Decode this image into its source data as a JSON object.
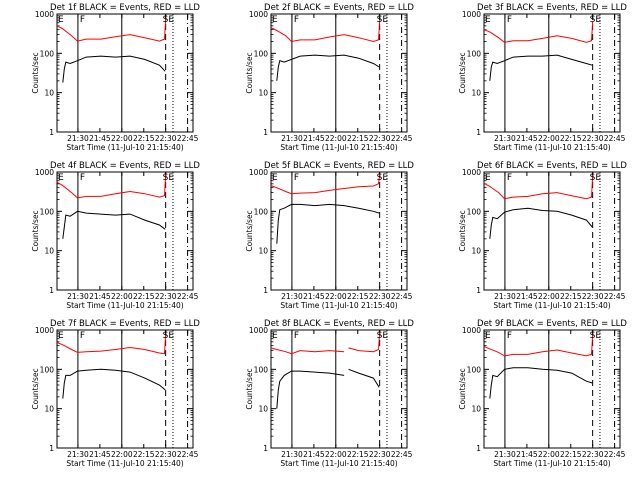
{
  "window": {
    "background": "#ffffff"
  },
  "chart_data": [
    {
      "type": "line",
      "title": "Det 1f BLACK = Events, RED = LLD",
      "xlabel": "Start Time (11-Jul-10 21:15:40)",
      "ylabel": "Counts/sec",
      "x_ticks": [
        "21:30",
        "21:45",
        "22:00",
        "22:15",
        "22:30",
        "22:45"
      ],
      "y_ticks": [
        "1",
        "10",
        "100",
        "1000"
      ],
      "y_scale": "log",
      "ylim": [
        1,
        1000
      ],
      "xlim_min": [
        0,
        93
      ],
      "markers": [
        "E",
        "F",
        "SE"
      ],
      "event_lines_min": {
        "solid": [
          14.3,
          44.3
        ],
        "dashed": 74.3,
        "dotted": 79.3,
        "dashdot": 89.3
      },
      "series": [
        {
          "color": "#ff0000",
          "x": [
            0,
            4,
            10,
            14,
            20,
            30,
            40,
            50,
            60,
            70,
            73.5,
            74.3
          ],
          "y": [
            500,
            420,
            280,
            205,
            230,
            230,
            265,
            300,
            250,
            205,
            230,
            800
          ]
        },
        {
          "color": "#000000",
          "x": [
            4,
            5,
            6,
            9,
            14,
            20,
            30,
            40,
            50,
            60,
            70,
            74
          ],
          "y": [
            18,
            40,
            60,
            55,
            65,
            80,
            85,
            80,
            85,
            70,
            50,
            35
          ]
        }
      ]
    },
    {
      "type": "line",
      "title": "Det 2f BLACK = Events, RED = LLD",
      "xlabel": "Start Time (11-Jul-10 21:15:40)",
      "ylabel": "Counts/sec",
      "x_ticks": [
        "21:30",
        "21:45",
        "22:00",
        "22:15",
        "22:30",
        "22:45"
      ],
      "y_ticks": [
        "1",
        "10",
        "100",
        "1000"
      ],
      "y_scale": "log",
      "ylim": [
        1,
        1000
      ],
      "xlim_min": [
        0,
        93
      ],
      "markers": [
        "E",
        "F",
        "SE"
      ],
      "event_lines_min": {
        "solid": [
          14.3,
          44.3
        ],
        "dashed": 74.3,
        "dotted": 79.3,
        "dashdot": 89.3
      },
      "series": [
        {
          "color": "#ff0000",
          "x": [
            0,
            4,
            10,
            14,
            20,
            30,
            40,
            50,
            60,
            70,
            73.5,
            74.3
          ],
          "y": [
            450,
            380,
            280,
            200,
            220,
            220,
            260,
            300,
            250,
            200,
            220,
            700
          ]
        },
        {
          "color": "#000000",
          "x": [
            4,
            5,
            6,
            9,
            14,
            20,
            30,
            40,
            50,
            60,
            70,
            74
          ],
          "y": [
            20,
            45,
            65,
            60,
            70,
            85,
            90,
            85,
            90,
            75,
            55,
            45
          ]
        }
      ]
    },
    {
      "type": "line",
      "title": "Det 3f BLACK = Events, RED = LLD",
      "xlabel": "Start Time (11-Jul-10 21:15:40)",
      "ylabel": "Counts/sec",
      "x_ticks": [
        "21:30",
        "21:45",
        "22:00",
        "22:15",
        "22:30",
        "22:45"
      ],
      "y_ticks": [
        "1",
        "10",
        "100",
        "1000"
      ],
      "y_scale": "log",
      "ylim": [
        1,
        1000
      ],
      "xlim_min": [
        0,
        93
      ],
      "markers": [
        "E",
        "F",
        "SE"
      ],
      "event_lines_min": {
        "solid": [
          14.3,
          44.3
        ],
        "dashed": 74.3,
        "dotted": 79.3,
        "dashdot": 89.3
      },
      "series": [
        {
          "color": "#ff0000",
          "x": [
            0,
            4,
            10,
            14,
            20,
            30,
            40,
            50,
            60,
            70,
            73.5,
            74.3
          ],
          "y": [
            400,
            350,
            250,
            190,
            210,
            210,
            240,
            280,
            240,
            190,
            210,
            650
          ]
        },
        {
          "color": "#000000",
          "x": [
            4,
            5,
            6,
            9,
            14,
            20,
            30,
            40,
            50,
            60,
            70,
            74
          ],
          "y": [
            20,
            45,
            60,
            55,
            65,
            80,
            85,
            85,
            90,
            70,
            55,
            50
          ]
        }
      ]
    },
    {
      "type": "line",
      "title": "Det 4f BLACK = Events, RED = LLD",
      "xlabel": "Start Time (11-Jul-10 21:15:40)",
      "ylabel": "Counts/sec",
      "x_ticks": [
        "21:30",
        "21:45",
        "22:00",
        "22:15",
        "22:30",
        "22:45"
      ],
      "y_ticks": [
        "1",
        "10",
        "100",
        "1000"
      ],
      "y_scale": "log",
      "ylim": [
        1,
        1000
      ],
      "xlim_min": [
        0,
        93
      ],
      "markers": [
        "E",
        "F",
        "SE"
      ],
      "event_lines_min": {
        "solid": [
          14.3,
          44.3
        ],
        "dashed": 74.3,
        "dotted": 79.3,
        "dashdot": 89.3
      },
      "series": [
        {
          "color": "#ff0000",
          "x": [
            0,
            4,
            10,
            14,
            20,
            30,
            40,
            50,
            60,
            70,
            73.5,
            74.3
          ],
          "y": [
            550,
            450,
            300,
            220,
            240,
            240,
            280,
            320,
            280,
            230,
            250,
            900
          ]
        },
        {
          "color": "#000000",
          "x": [
            4,
            5,
            6,
            9,
            14,
            20,
            30,
            40,
            50,
            60,
            70,
            74
          ],
          "y": [
            20,
            40,
            80,
            75,
            100,
            90,
            85,
            80,
            85,
            60,
            45,
            35
          ]
        }
      ]
    },
    {
      "type": "line",
      "title": "Det 5f BLACK = Events, RED = LLD",
      "xlabel": "Start Time (11-Jul-10 21:15:40)",
      "ylabel": "Counts/sec",
      "x_ticks": [
        "21:30",
        "21:45",
        "22:00",
        "22:15",
        "22:30",
        "22:45"
      ],
      "y_ticks": [
        "1",
        "10",
        "100",
        "1000"
      ],
      "y_scale": "log",
      "ylim": [
        1,
        1000
      ],
      "xlim_min": [
        0,
        93
      ],
      "markers": [
        "E",
        "F",
        "SE"
      ],
      "event_lines_min": {
        "solid": [
          14.3,
          44.3
        ],
        "dashed": 74.3,
        "dotted": 79.3,
        "dashdot": 89.3
      },
      "series": [
        {
          "color": "#ff0000",
          "x": [
            0,
            4,
            10,
            14,
            20,
            30,
            40,
            50,
            60,
            70,
            73.5,
            74.3
          ],
          "y": [
            450,
            400,
            320,
            280,
            290,
            300,
            340,
            380,
            420,
            440,
            500,
            900
          ]
        },
        {
          "color": "#000000",
          "x": [
            4,
            5,
            6,
            9,
            14,
            20,
            30,
            40,
            50,
            60,
            70,
            74
          ],
          "y": [
            15,
            60,
            110,
            120,
            150,
            150,
            140,
            150,
            140,
            120,
            100,
            90
          ]
        }
      ]
    },
    {
      "type": "line",
      "title": "Det 6f BLACK = Events, RED = LLD",
      "xlabel": "Start Time (11-Jul-10 21:15:40)",
      "ylabel": "Counts/sec",
      "x_ticks": [
        "21:30",
        "21:45",
        "22:00",
        "22:15",
        "22:30",
        "22:45"
      ],
      "y_ticks": [
        "1",
        "10",
        "100",
        "1000"
      ],
      "y_scale": "log",
      "ylim": [
        1,
        1000
      ],
      "xlim_min": [
        0,
        93
      ],
      "markers": [
        "E",
        "F",
        "SE"
      ],
      "event_lines_min": {
        "solid": [
          14.3,
          44.3
        ],
        "dashed": 74.3,
        "dotted": 79.3,
        "dashdot": 89.3
      },
      "series": [
        {
          "color": "#ff0000",
          "x": [
            0,
            4,
            10,
            14,
            20,
            30,
            40,
            50,
            60,
            70,
            73.5,
            74.3
          ],
          "y": [
            520,
            430,
            300,
            210,
            230,
            240,
            280,
            300,
            250,
            210,
            230,
            850
          ]
        },
        {
          "color": "#000000",
          "x": [
            4,
            5,
            6,
            9,
            14,
            20,
            30,
            40,
            50,
            60,
            70,
            74
          ],
          "y": [
            20,
            45,
            70,
            65,
            95,
            110,
            120,
            105,
            100,
            80,
            60,
            40
          ]
        }
      ]
    },
    {
      "type": "line",
      "title": "Det 7f BLACK = Events, RED = LLD",
      "xlabel": "Start Time (11-Jul-10 21:15:40)",
      "ylabel": "Counts/sec",
      "x_ticks": [
        "21:30",
        "21:45",
        "22:00",
        "22:15",
        "22:30",
        "22:45"
      ],
      "y_ticks": [
        "1",
        "10",
        "100",
        "1000"
      ],
      "y_scale": "log",
      "ylim": [
        1,
        1000
      ],
      "xlim_min": [
        0,
        93
      ],
      "markers": [
        "E",
        "F",
        "SE"
      ],
      "event_lines_min": {
        "solid": [
          14.3,
          44.3
        ],
        "dashed": 74.3,
        "dotted": 79.3,
        "dashdot": 89.3
      },
      "series": [
        {
          "color": "#ff0000",
          "x": [
            0,
            4,
            10,
            14,
            20,
            30,
            40,
            50,
            60,
            70,
            73.5,
            74.3
          ],
          "y": [
            480,
            420,
            320,
            270,
            280,
            290,
            320,
            360,
            320,
            260,
            250,
            800
          ]
        },
        {
          "color": "#000000",
          "x": [
            4,
            5,
            6,
            9,
            14,
            20,
            30,
            40,
            50,
            60,
            70,
            74
          ],
          "y": [
            18,
            45,
            70,
            70,
            90,
            95,
            100,
            95,
            85,
            60,
            40,
            30
          ]
        }
      ]
    },
    {
      "type": "line",
      "title": "Det 8f BLACK = Events, RED = LLD",
      "xlabel": "Start Time (11-Jul-10 21:15:40)",
      "ylabel": "Counts/sec",
      "x_ticks": [
        "21:30",
        "21:45",
        "22:00",
        "22:15",
        "22:30",
        "22:45"
      ],
      "y_ticks": [
        "1",
        "10",
        "100",
        "1000"
      ],
      "y_scale": "log",
      "ylim": [
        1,
        1000
      ],
      "xlim_min": [
        0,
        93
      ],
      "markers": [
        "E",
        "F",
        "SE"
      ],
      "event_lines_min": {
        "solid": [
          14.3,
          44.3
        ],
        "dashed": 74.3,
        "dotted": 79.3,
        "dashdot": 89.3
      },
      "series": [
        {
          "color": "#ff0000",
          "x": [
            0,
            4,
            10,
            14,
            20,
            30,
            40,
            50,
            51,
            53,
            60,
            70,
            73.5,
            74.3
          ],
          "y": [
            350,
            320,
            280,
            250,
            300,
            280,
            300,
            280,
            null,
            350,
            300,
            280,
            320,
            900
          ]
        },
        {
          "color": "#000000",
          "x": [
            4,
            5,
            6,
            9,
            14,
            20,
            30,
            40,
            50,
            51,
            53,
            60,
            70,
            74
          ],
          "y": [
            10,
            30,
            50,
            70,
            90,
            90,
            85,
            80,
            70,
            null,
            100,
            80,
            60,
            35
          ]
        }
      ]
    },
    {
      "type": "line",
      "title": "Det 9f BLACK = Events, RED = LLD",
      "xlabel": "Start Time (11-Jul-10 21:15:40)",
      "ylabel": "Counts/sec",
      "x_ticks": [
        "21:30",
        "21:45",
        "22:00",
        "22:15",
        "22:30",
        "22:45"
      ],
      "y_ticks": [
        "1",
        "10",
        "100",
        "1000"
      ],
      "y_scale": "log",
      "ylim": [
        1,
        1000
      ],
      "xlim_min": [
        0,
        93
      ],
      "markers": [
        "E",
        "F",
        "SE"
      ],
      "event_lines_min": {
        "solid": [
          14.3,
          44.3
        ],
        "dashed": 74.3,
        "dotted": 79.3,
        "dashdot": 89.3
      },
      "series": [
        {
          "color": "#ff0000",
          "x": [
            0,
            4,
            10,
            14,
            20,
            30,
            40,
            50,
            60,
            70,
            73.5,
            74.3
          ],
          "y": [
            380,
            330,
            270,
            220,
            240,
            240,
            280,
            310,
            260,
            220,
            240,
            800
          ]
        },
        {
          "color": "#000000",
          "x": [
            4,
            5,
            6,
            9,
            14,
            20,
            30,
            40,
            50,
            60,
            70,
            74
          ],
          "y": [
            18,
            40,
            70,
            65,
            100,
            110,
            110,
            100,
            95,
            80,
            50,
            45
          ]
        }
      ]
    }
  ]
}
